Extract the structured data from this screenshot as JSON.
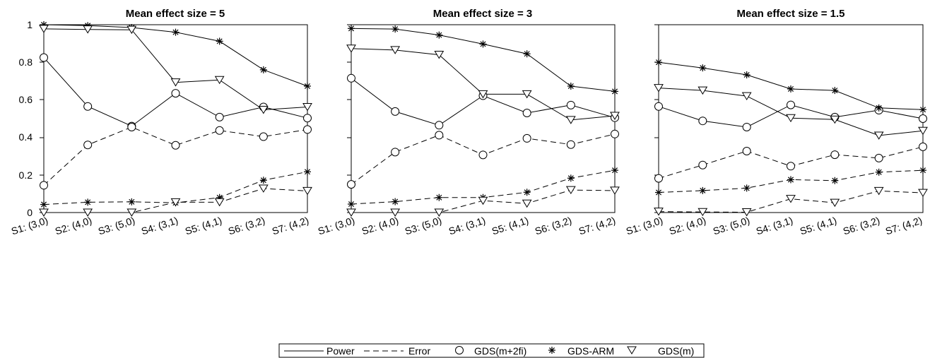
{
  "legend": {
    "items": [
      {
        "label": "Power",
        "kind": "line",
        "dash": "solid"
      },
      {
        "label": "Error",
        "kind": "line",
        "dash": "dashed"
      },
      {
        "label": "GDS(m+2fi)",
        "kind": "marker",
        "marker": "circle"
      },
      {
        "label": "GDS-ARM",
        "kind": "marker",
        "marker": "star"
      },
      {
        "label": "GDS(m)",
        "kind": "marker",
        "marker": "triangle-down"
      }
    ]
  },
  "chart_data": [
    {
      "type": "line",
      "title": "Mean effect size = 5",
      "categories": [
        "S1: (3,0)",
        "S2: (4,0)",
        "S3: (5,0)",
        "S4: (3,1)",
        "S5: (4,1)",
        "S6: (3,2)",
        "S7: (4,2)"
      ],
      "ylim": [
        0,
        1
      ],
      "yticks": [
        "0",
        "0.2",
        "0.4",
        "0.6",
        "0.8",
        "1"
      ],
      "series": [
        {
          "name": "GDS(m+2fi)",
          "metric": "Power",
          "marker": "circle",
          "values": [
            0.825,
            0.565,
            0.46,
            0.635,
            0.508,
            0.562,
            0.503
          ]
        },
        {
          "name": "GDS(m+2fi)",
          "metric": "Error",
          "marker": "circle",
          "values": [
            0.145,
            0.36,
            0.455,
            0.358,
            0.437,
            0.404,
            0.442
          ]
        },
        {
          "name": "GDS-ARM",
          "metric": "Power",
          "marker": "star",
          "values": [
            1.0,
            0.995,
            0.985,
            0.96,
            0.912,
            0.76,
            0.673
          ]
        },
        {
          "name": "GDS-ARM",
          "metric": "Error",
          "marker": "star",
          "values": [
            0.043,
            0.055,
            0.057,
            0.052,
            0.08,
            0.172,
            0.217
          ]
        },
        {
          "name": "GDS(m)",
          "metric": "Power",
          "marker": "triangle-down",
          "values": [
            0.978,
            0.975,
            0.973,
            0.693,
            0.706,
            0.547,
            0.562
          ]
        },
        {
          "name": "GDS(m)",
          "metric": "Error",
          "marker": "triangle-down",
          "values": [
            0.0,
            0.0,
            0.0,
            0.055,
            0.055,
            0.128,
            0.115
          ]
        }
      ]
    },
    {
      "type": "line",
      "title": "Mean effect size = 3",
      "categories": [
        "S1: (3,0)",
        "S2: (4,0)",
        "S3: (5,0)",
        "S4: (3,1)",
        "S5: (4,1)",
        "S6: (3,2)",
        "S7: (4,2)"
      ],
      "ylim": [
        0,
        1
      ],
      "series": [
        {
          "name": "GDS(m+2fi)",
          "metric": "Power",
          "marker": "circle",
          "values": [
            0.715,
            0.538,
            0.465,
            0.622,
            0.53,
            0.572,
            0.505
          ]
        },
        {
          "name": "GDS(m+2fi)",
          "metric": "Error",
          "marker": "circle",
          "values": [
            0.15,
            0.322,
            0.412,
            0.307,
            0.395,
            0.362,
            0.418
          ]
        },
        {
          "name": "GDS-ARM",
          "metric": "Power",
          "marker": "star",
          "values": [
            0.98,
            0.977,
            0.945,
            0.897,
            0.845,
            0.673,
            0.645
          ]
        },
        {
          "name": "GDS-ARM",
          "metric": "Error",
          "marker": "star",
          "values": [
            0.045,
            0.058,
            0.08,
            0.08,
            0.108,
            0.183,
            0.225
          ]
        },
        {
          "name": "GDS(m)",
          "metric": "Power",
          "marker": "triangle-down",
          "values": [
            0.873,
            0.865,
            0.84,
            0.63,
            0.63,
            0.493,
            0.515
          ]
        },
        {
          "name": "GDS(m)",
          "metric": "Error",
          "marker": "triangle-down",
          "values": [
            0.0,
            0.0,
            0.0,
            0.063,
            0.048,
            0.12,
            0.117
          ]
        }
      ]
    },
    {
      "type": "line",
      "title": "Mean effect size = 1.5",
      "categories": [
        "S1: (3,0)",
        "S2: (4,0)",
        "S3: (5,0)",
        "S4: (3,1)",
        "S5: (4,1)",
        "S6: (3,2)",
        "S7: (4,2)"
      ],
      "ylim": [
        0,
        1
      ],
      "series": [
        {
          "name": "GDS(m+2fi)",
          "metric": "Power",
          "marker": "circle",
          "values": [
            0.565,
            0.488,
            0.455,
            0.573,
            0.508,
            0.545,
            0.5
          ]
        },
        {
          "name": "GDS(m+2fi)",
          "metric": "Error",
          "marker": "circle",
          "values": [
            0.182,
            0.253,
            0.327,
            0.247,
            0.308,
            0.29,
            0.35
          ]
        },
        {
          "name": "GDS-ARM",
          "metric": "Power",
          "marker": "star",
          "values": [
            0.8,
            0.77,
            0.733,
            0.658,
            0.65,
            0.557,
            0.548
          ]
        },
        {
          "name": "GDS-ARM",
          "metric": "Error",
          "marker": "star",
          "values": [
            0.107,
            0.117,
            0.13,
            0.175,
            0.17,
            0.215,
            0.225
          ]
        },
        {
          "name": "GDS(m)",
          "metric": "Power",
          "marker": "triangle-down",
          "values": [
            0.663,
            0.65,
            0.62,
            0.503,
            0.495,
            0.41,
            0.435
          ]
        },
        {
          "name": "GDS(m)",
          "metric": "Error",
          "marker": "triangle-down",
          "values": [
            0.005,
            0.003,
            0.002,
            0.073,
            0.052,
            0.115,
            0.105
          ]
        }
      ]
    }
  ]
}
